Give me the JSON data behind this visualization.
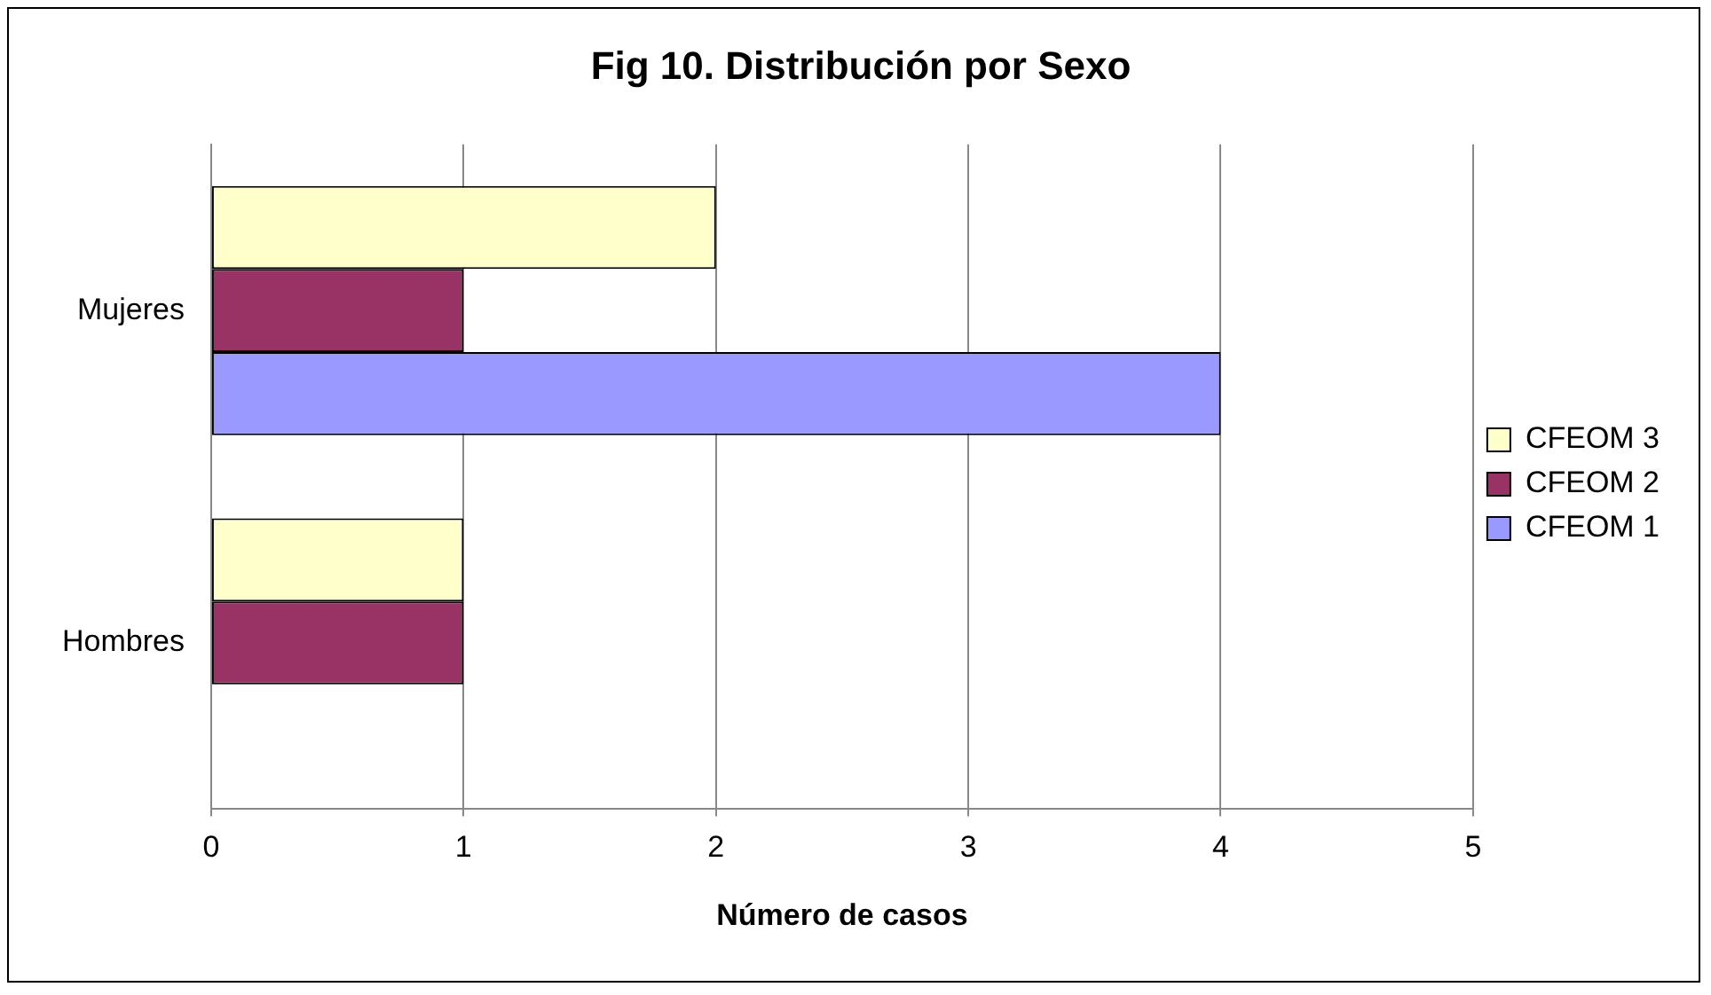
{
  "chart_data": {
    "type": "bar",
    "orientation": "horizontal",
    "title": "Fig 10. Distribución por Sexo",
    "xlabel": "Número de casos",
    "categories": [
      "Mujeres",
      "Hombres"
    ],
    "series": [
      {
        "name": "CFEOM 3",
        "color": "#ffffcc",
        "values": [
          2,
          1
        ]
      },
      {
        "name": "CFEOM 2",
        "color": "#993366",
        "values": [
          1,
          1
        ]
      },
      {
        "name": "CFEOM 1",
        "color": "#9999ff",
        "values": [
          4,
          0
        ]
      }
    ],
    "xlim": [
      0,
      5
    ],
    "xticks": [
      0,
      1,
      2,
      3,
      4,
      5
    ],
    "grid": "x",
    "legend": "right"
  }
}
